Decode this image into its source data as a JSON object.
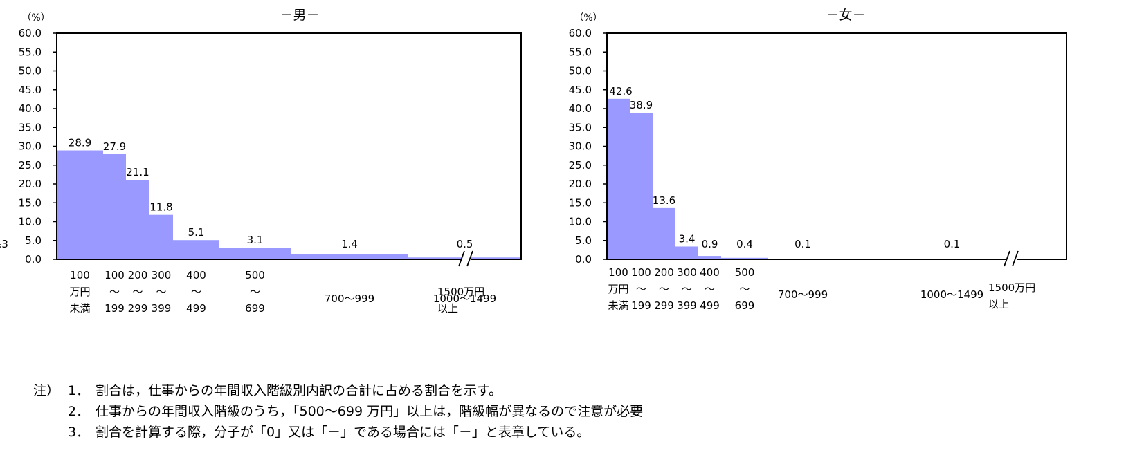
{
  "chart_data": [
    {
      "type": "bar",
      "title": "－男－",
      "ylabel": "（%）",
      "ylim": [
        0,
        60
      ],
      "yticks": [
        "0.0",
        "5.0",
        "10.0",
        "15.0",
        "20.0",
        "25.0",
        "30.0",
        "35.0",
        "40.0",
        "45.0",
        "50.0",
        "55.0",
        "60.0"
      ],
      "bar_color": "#9999ff",
      "categories": [
        {
          "lines": [
            "100",
            "万円",
            "未満"
          ],
          "value": 28.9,
          "label": "28.9"
        },
        {
          "lines": [
            "100",
            "～",
            "199"
          ],
          "value": 27.9,
          "label": "27.9"
        },
        {
          "lines": [
            "200",
            "～",
            "299"
          ],
          "value": 21.1,
          "label": "21.1"
        },
        {
          "lines": [
            "300",
            "～",
            "399"
          ],
          "value": 11.8,
          "label": "11.8"
        },
        {
          "lines": [
            "400",
            "～",
            "499"
          ],
          "value": 5.1,
          "label": "5.1"
        },
        {
          "lines": [
            "500",
            "～",
            "699"
          ],
          "value": 3.1,
          "label": "3.1"
        },
        {
          "lines": [
            "700～999"
          ],
          "value": 1.4,
          "label": "1.4"
        },
        {
          "lines": [
            "1000～1499"
          ],
          "value": 0.5,
          "label": "0.5"
        },
        {
          "lines": [
            "1500万円",
            "以上"
          ],
          "value": 0.3,
          "label": "0.3"
        }
      ]
    },
    {
      "type": "bar",
      "title": "－女－",
      "ylabel": "（%）",
      "ylim": [
        0,
        60
      ],
      "yticks": [
        "0.0",
        "5.0",
        "10.0",
        "15.0",
        "20.0",
        "25.0",
        "30.0",
        "35.0",
        "40.0",
        "45.0",
        "50.0",
        "55.0",
        "60.0"
      ],
      "bar_color": "#9999ff",
      "categories": [
        {
          "lines": [
            "100",
            "万円",
            "未満"
          ],
          "value": 42.6,
          "label": "42.6"
        },
        {
          "lines": [
            "100",
            "～",
            "199"
          ],
          "value": 38.9,
          "label": "38.9"
        },
        {
          "lines": [
            "200",
            "～",
            "299"
          ],
          "value": 13.6,
          "label": "13.6"
        },
        {
          "lines": [
            "300",
            "～",
            "399"
          ],
          "value": 3.4,
          "label": "3.4"
        },
        {
          "lines": [
            "400",
            "～",
            "499"
          ],
          "value": 0.9,
          "label": "0.9"
        },
        {
          "lines": [
            "500",
            "～",
            "699"
          ],
          "value": 0.4,
          "label": "0.4"
        },
        {
          "lines": [
            "700～999"
          ],
          "value": 0.1,
          "label": "0.1"
        },
        {
          "lines": [
            "1000～1499"
          ],
          "value": 0.1,
          "label": "0.1"
        },
        {
          "lines": [
            "1500万円",
            "以上"
          ],
          "value": 0,
          "label": "-"
        }
      ]
    }
  ],
  "notes": {
    "prefix": "注）",
    "items": [
      {
        "num": "1．",
        "text": "割合は，仕事からの年間収入階級別内訳の合計に占める割合を示す。"
      },
      {
        "num": "2．",
        "text": "仕事からの年間収入階級のうち，「500～699 万円」以上は，階級幅が異なるので注意が必要"
      },
      {
        "num": "3．",
        "text": "割合を計算する際，分子が「0」又は「－」である場合には「－」と表章している。"
      }
    ]
  }
}
